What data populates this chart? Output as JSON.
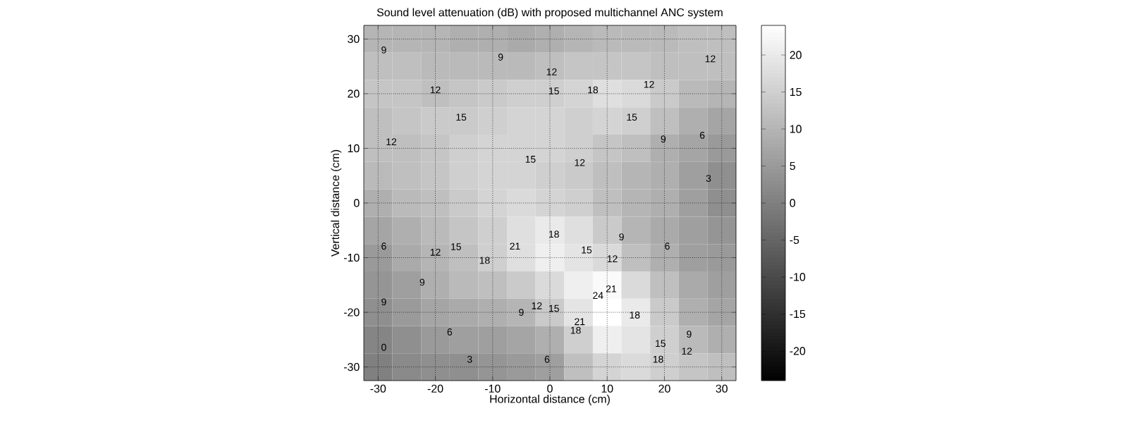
{
  "chart_data": {
    "type": "heatmap",
    "title": "Sound level attenuation (dB) with proposed multichannel ANC system",
    "xlabel": "Horizontal distance (cm)",
    "ylabel": "Vertical distance (cm)",
    "grid": true,
    "categories": [
      "-30",
      null,
      "-20",
      null,
      "-10",
      null,
      "0",
      null,
      "10",
      null,
      "20",
      null,
      "30"
    ],
    "y_categories": [
      "30",
      null,
      "20",
      null,
      "10",
      null,
      "0",
      null,
      "-10",
      null,
      "-20",
      null,
      "-30"
    ],
    "clim": [
      -24,
      24
    ],
    "cticks": [
      -20,
      -15,
      -10,
      -5,
      0,
      5,
      10,
      15,
      20
    ],
    "cells": [
      [
        10,
        10,
        10,
        9,
        9,
        8,
        9,
        10,
        11,
        11,
        11,
        12,
        12
      ],
      [
        12,
        12,
        11,
        11,
        11,
        11,
        12,
        13,
        13,
        13,
        12,
        12,
        12
      ],
      [
        13,
        13,
        12,
        13,
        14,
        15,
        15,
        16,
        18,
        17,
        14,
        11,
        10
      ],
      [
        12,
        13,
        14,
        14,
        15,
        16,
        16,
        15,
        16,
        15,
        12,
        9,
        7
      ],
      [
        12,
        12,
        13,
        15,
        16,
        16,
        16,
        15,
        13,
        12,
        9,
        7,
        5
      ],
      [
        11,
        12,
        13,
        15,
        16,
        16,
        15,
        14,
        12,
        10,
        9,
        6,
        3
      ],
      [
        9,
        11,
        12,
        14,
        16,
        17,
        16,
        15,
        12,
        10,
        9,
        6,
        3
      ],
      [
        7,
        9,
        11,
        13,
        15,
        18,
        20,
        18,
        14,
        10,
        8,
        6,
        4
      ],
      [
        5,
        8,
        10,
        12,
        15,
        18,
        21,
        19,
        17,
        12,
        9,
        6,
        5
      ],
      [
        4,
        6,
        9,
        11,
        12,
        14,
        17,
        21,
        23,
        17,
        12,
        8,
        6
      ],
      [
        3,
        5,
        7,
        8,
        9,
        10,
        14,
        19,
        25,
        20,
        14,
        9,
        7
      ],
      [
        1,
        3,
        5,
        6,
        6,
        7,
        9,
        15,
        21,
        19,
        15,
        11,
        9
      ],
      [
        0,
        2,
        3,
        3,
        4,
        5,
        6,
        12,
        16,
        17,
        15,
        13,
        12
      ]
    ],
    "annotations": [
      "9",
      "9",
      "12",
      "12",
      "15",
      "18",
      "12",
      "12",
      "15",
      "15",
      "12",
      "9",
      "6",
      "15",
      "12",
      "3",
      "18",
      "9",
      "6",
      "6",
      "12",
      "15",
      "21",
      "18",
      "15",
      "12",
      "9",
      "9",
      "21",
      "24",
      "12",
      "15",
      "9",
      "18",
      "21",
      "18",
      "6",
      "9",
      "15",
      "12",
      "0",
      "3",
      "18",
      "6"
    ]
  }
}
